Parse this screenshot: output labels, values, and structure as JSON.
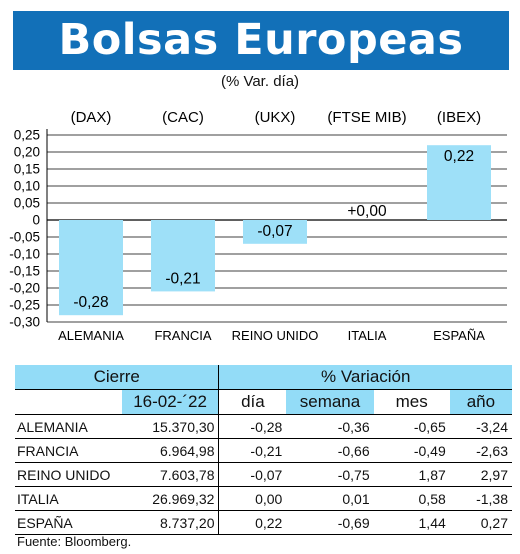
{
  "header": {
    "title": "Bolsas Europeas",
    "subtitle": "(% Var. día)"
  },
  "chart_data": {
    "type": "bar",
    "title": "Bolsas Europeas",
    "subtitle": "(% Var. día)",
    "categories": [
      "ALEMANIA",
      "FRANCIA",
      "REINO UNIDO",
      "ITALIA",
      "ESPAÑA"
    ],
    "index_labels": [
      "(DAX)",
      "(CAC)",
      "(UKX)",
      "(FTSE MIB)",
      "(IBEX)"
    ],
    "values": [
      -0.28,
      -0.21,
      -0.07,
      0.0,
      0.22
    ],
    "value_labels": [
      "-0,28",
      "-0,21",
      "-0,07",
      "+0,00",
      "0,22"
    ],
    "yticks": [
      "-0,30",
      "-0,25",
      "-0,20",
      "-0,15",
      "-0,10",
      "-0,05",
      "0",
      "0,05",
      "0,10",
      "0,15",
      "0,20",
      "0,25"
    ],
    "ylim": [
      -0.3,
      0.25
    ],
    "grid": true,
    "bar_color": "#9ee0f8"
  },
  "table": {
    "header_cierre": "Cierre",
    "header_variacion": "% Variación",
    "date": "16-02-´22",
    "columns": [
      "día",
      "semana",
      "mes",
      "año"
    ],
    "rows": [
      {
        "name": "ALEMANIA",
        "cierre": "15.370,30",
        "dia": "-0,28",
        "semana": "-0,36",
        "mes": "-0,65",
        "anio": "-3,24"
      },
      {
        "name": "FRANCIA",
        "cierre": "6.964,98",
        "dia": "-0,21",
        "semana": "-0,66",
        "mes": "-0,49",
        "anio": "-2,63"
      },
      {
        "name": "REINO UNIDO",
        "cierre": "7.603,78",
        "dia": "-0,07",
        "semana": "-0,75",
        "mes": "1,87",
        "anio": "2,97"
      },
      {
        "name": "ITALIA",
        "cierre": "26.969,32",
        "dia": "0,00",
        "semana": "0,01",
        "mes": "0,58",
        "anio": "-1,38"
      },
      {
        "name": "ESPAÑA",
        "cierre": "8.737,20",
        "dia": "0,22",
        "semana": "-0,69",
        "mes": "1,44",
        "anio": "0,27"
      }
    ]
  },
  "footer": {
    "source": "Fuente: Bloomberg."
  }
}
